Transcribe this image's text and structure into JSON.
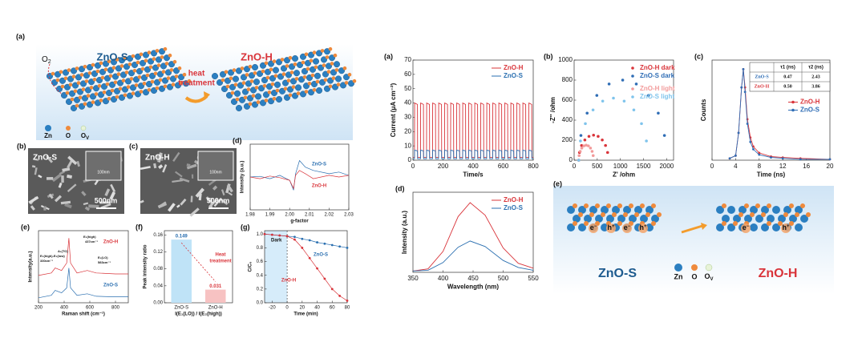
{
  "left_figure": {
    "diagram": {
      "label": "(a)",
      "oxygen": "O",
      "oxygen_sub": "2",
      "before": "ZnO-S",
      "process": [
        "heat",
        "treatment"
      ],
      "after": "ZnO-H",
      "legend": [
        "Zn",
        "O",
        "O"
      ],
      "vacancy_sub": "V"
    },
    "images": [
      {
        "label": "(b)",
        "name": "ZnO-S",
        "inset_scale": "100nm",
        "scale": "500nm"
      },
      {
        "label": "(c)",
        "name": "ZnO-H",
        "inset_scale": "100nm",
        "scale": "500nm"
      }
    ]
  },
  "chart_data": [
    {
      "type": "line",
      "label": "(d)",
      "xlabel": "g-factor",
      "ylabel": "Intensity (a.u.)",
      "x": [
        1.98,
        1.985,
        1.99,
        1.995,
        2.0,
        2.002,
        2.003,
        2.005,
        2.008,
        2.012,
        2.02,
        2.025,
        2.03
      ],
      "series": [
        {
          "name": "ZnO-S",
          "color": "#2a6fb0",
          "values": [
            0,
            0.02,
            -0.05,
            0.05,
            -0.1,
            -0.4,
            0.1,
            0.5,
            0.3,
            0.2,
            0.1,
            0.15,
            0.05
          ]
        },
        {
          "name": "ZnO-H",
          "color": "#d9343a",
          "values": [
            0,
            -0.05,
            0.03,
            -0.02,
            -0.1,
            -0.35,
            0.05,
            0.2,
            0.1,
            -0.05,
            0.05,
            0,
            0.05
          ]
        }
      ],
      "xlim": [
        1.98,
        2.03
      ],
      "xticks": [
        1.98,
        1.99,
        {
          "value": 2.0,
          "label": "2.00"
        },
        2.01,
        2.02,
        2.03
      ],
      "ylim": [
        -1,
        1
      ],
      "yticks": [],
      "legend": "inline"
    },
    {
      "type": "line",
      "label": "(e)",
      "xlabel": "Raman shift (cm⁻¹)",
      "ylabel": "Intensity(a.u.)",
      "x": [
        200,
        300,
        330,
        380,
        420,
        437,
        450,
        500,
        580,
        650,
        800,
        900
      ],
      "series": [
        {
          "name": "ZnO-H",
          "color": "#d9343a",
          "values": [
            0.55,
            0.6,
            0.7,
            0.65,
            0.8,
            1.3,
            0.8,
            0.6,
            0.65,
            0.6,
            0.58,
            0.58
          ]
        },
        {
          "name": "ZnO-S",
          "color": "#2a6fb0",
          "values": [
            0.1,
            0.15,
            0.25,
            0.2,
            0.3,
            0.7,
            0.3,
            0.15,
            0.18,
            0.13,
            0.12,
            0.12
          ]
        }
      ],
      "annotations": [
        "E₂(high)-E₂(low)",
        "330cm⁻¹",
        "A₁(TO)",
        "E₂(high)",
        "437cm⁻¹",
        "E₁(LO)",
        "583cm⁻¹"
      ],
      "xlim": [
        200,
        900
      ],
      "xticks": [
        200,
        400,
        600,
        800
      ],
      "ylim": [
        0,
        1.45
      ],
      "yticks": [],
      "legend": "inline"
    },
    {
      "type": "bar",
      "label": "(f)",
      "xlabel": "I(E₁(LO)) / I(E₂(high))",
      "ylabel": "Peak intensity ratio",
      "categories": [
        "ZnO-S",
        "ZnO-H"
      ],
      "values": [
        0.149,
        0.031
      ],
      "colors": [
        "#bfe3f7",
        "#f7c2c2"
      ],
      "label_colors": [
        "#2a6fb0",
        "#d9343a"
      ],
      "annotations": [
        "Heat",
        "treatment"
      ],
      "ylim": [
        0,
        0.17
      ],
      "yticks": [
        {
          "value": 0,
          "label": "0.00"
        },
        0.04,
        0.08,
        0.12,
        0.16
      ]
    },
    {
      "type": "line",
      "label": "(g)",
      "xlabel": "Time (min)",
      "ylabel": "C/C₀",
      "markers": true,
      "x": [
        -30,
        -20,
        -10,
        0,
        10,
        20,
        30,
        40,
        50,
        60,
        70,
        80
      ],
      "series": [
        {
          "name": "ZnO-S",
          "color": "#2a6fb0",
          "values": [
            1.0,
            0.99,
            0.98,
            0.97,
            0.96,
            0.93,
            0.91,
            0.88,
            0.86,
            0.84,
            0.82,
            0.8
          ]
        },
        {
          "name": "ZnO-H",
          "color": "#d9343a",
          "values": [
            1.0,
            0.99,
            0.98,
            0.97,
            0.92,
            0.8,
            0.65,
            0.5,
            0.35,
            0.2,
            0.1,
            0.03
          ]
        }
      ],
      "annotations": [
        "Dark"
      ],
      "dark_until": 0,
      "xlim": [
        -30,
        80
      ],
      "xticks": [
        -20,
        0,
        20,
        40,
        60,
        80
      ],
      "ylim": [
        0,
        1.05
      ],
      "yticks": [
        {
          "value": 0,
          "label": "0.0"
        },
        0.2,
        0.4,
        0.6,
        0.8,
        {
          "value": 1,
          "label": "1.0"
        }
      ],
      "legend": "inline"
    },
    {
      "type": "line",
      "label": "(a)",
      "xlabel": "Time/s",
      "ylabel": "Current (μA cm⁻²)",
      "x": [
        0,
        10,
        11,
        30,
        31,
        50,
        51,
        70,
        71,
        90,
        91,
        110,
        111,
        130,
        131,
        150,
        151,
        170,
        171,
        190,
        191,
        210,
        211,
        230,
        231,
        250,
        251,
        270,
        271,
        290,
        291,
        310,
        311,
        330,
        331,
        350,
        351,
        370,
        371,
        390,
        391,
        410,
        411,
        430,
        431,
        450,
        451,
        470,
        471,
        490,
        491,
        510,
        511,
        530,
        531,
        550,
        551,
        570,
        571,
        590,
        591,
        610,
        611,
        630,
        631,
        650,
        651,
        670,
        671,
        690,
        691,
        710,
        711,
        730,
        731,
        750,
        751,
        770,
        771,
        790,
        791,
        800
      ],
      "series": [
        {
          "name": "ZnO-H",
          "color": "#d9343a",
          "values": [
            2,
            2,
            40,
            39,
            2,
            2,
            40,
            39,
            2,
            2,
            40,
            39,
            2,
            2,
            40,
            39,
            2,
            2,
            40,
            39,
            2,
            2,
            40,
            39,
            2,
            2,
            40,
            39,
            2,
            2,
            40,
            39,
            2,
            2,
            40,
            39,
            2,
            2,
            40,
            39,
            2,
            2,
            40,
            39,
            2,
            2,
            40,
            39,
            2,
            2,
            40,
            39,
            2,
            2,
            40,
            39,
            2,
            2,
            40,
            39,
            2,
            2,
            40,
            39,
            2,
            2,
            40,
            39,
            2,
            2,
            40,
            39,
            2,
            2,
            40,
            39,
            2,
            2,
            40,
            39,
            2,
            2
          ]
        },
        {
          "name": "ZnO-S",
          "color": "#2a6fb0",
          "values": [
            1,
            1,
            7,
            6.5,
            1,
            1,
            7,
            6.5,
            1,
            1,
            7,
            6.5,
            1,
            1,
            7,
            6.5,
            1,
            1,
            7,
            6.5,
            1,
            1,
            7,
            6.5,
            1,
            1,
            7,
            6.5,
            1,
            1,
            7,
            6.5,
            1,
            1,
            7,
            6.5,
            1,
            1,
            7,
            6.5,
            1,
            1,
            7,
            6.5,
            1,
            1,
            7,
            6.5,
            1,
            1,
            7,
            6.5,
            1,
            1,
            7,
            6.5,
            1,
            1,
            7,
            6.5,
            1,
            1,
            7,
            6.5,
            1,
            1,
            7,
            6.5,
            1,
            1,
            7,
            6.5,
            1,
            1,
            7,
            6.5,
            1,
            1,
            7,
            6.5,
            1,
            1
          ]
        }
      ],
      "xlim": [
        0,
        800
      ],
      "xticks": [
        0,
        200,
        400,
        600,
        800
      ],
      "ylim": [
        0,
        70
      ],
      "yticks": [
        0,
        10,
        20,
        30,
        40,
        50,
        60,
        70
      ],
      "legend": "upper right"
    },
    {
      "type": "scatter",
      "label": "(b)",
      "xlabel": "Z' /ohm",
      "ylabel": "-Z'' /ohm",
      "series": [
        {
          "name": "ZnO-H dark",
          "color": "#d9343a",
          "x": [
            100,
            116,
            161,
            232,
            321,
            420,
            519,
            608,
            679,
            724
          ],
          "values": [
            0,
            77,
            147,
            202,
            238,
            250,
            238,
            202,
            147,
            77
          ]
        },
        {
          "name": "ZnO-S dark",
          "color": "#2f6db5",
          "x": [
            100,
            147,
            281,
            491,
            756,
            1050,
            1344,
            1609,
            1819,
            1953
          ],
          "values": [
            0,
            247,
            470,
            647,
            761,
            800,
            761,
            647,
            470,
            247
          ]
        },
        {
          "name": "ZnO-H light",
          "color": "#f29a9a",
          "x": [
            100,
            108,
            131,
            166,
            211,
            260,
            309,
            354,
            389,
            412
          ],
          "values": [
            0,
            46,
            88,
            121,
            143,
            150,
            143,
            121,
            88,
            46
          ]
        },
        {
          "name": "ZnO-S light",
          "color": "#7fc4ec",
          "x": [
            100,
            137,
            243,
            409,
            618,
            850,
            1082,
            1291,
            1457,
            1563
          ],
          "values": [
            0,
            192,
            365,
            502,
            590,
            620,
            590,
            502,
            365,
            192
          ]
        }
      ],
      "xlim": [
        0,
        2150
      ],
      "xticks": [
        0,
        500,
        1000,
        1500,
        2000
      ],
      "ylim": [
        0,
        1000
      ],
      "yticks": [
        0,
        200,
        400,
        600,
        800,
        1000
      ],
      "legend": "upper left"
    },
    {
      "type": "line",
      "label": "(c)",
      "xlabel": "Time (ns)",
      "ylabel": "Counts",
      "markers": true,
      "x": [
        3,
        4,
        4.5,
        5,
        5.3,
        5.6,
        6,
        6.5,
        7,
        8,
        10,
        12,
        15,
        20
      ],
      "series": [
        {
          "name": "ZnO-H",
          "color": "#d9343a",
          "values": [
            0.02,
            0.05,
            0.3,
            0.8,
            1.0,
            0.8,
            0.45,
            0.25,
            0.15,
            0.08,
            0.04,
            0.03,
            0.02,
            0.01
          ]
        },
        {
          "name": "ZnO-S",
          "color": "#2f6db5",
          "values": [
            0.02,
            0.05,
            0.3,
            0.8,
            1.0,
            0.75,
            0.4,
            0.2,
            0.12,
            0.06,
            0.03,
            0.02,
            0.01,
            0.01
          ]
        }
      ],
      "table": {
        "header": [
          "τ1 (ns)",
          "τ2 (ns)"
        ],
        "rows": [
          [
            "ZnO-S",
            "0.47",
            "2.43"
          ],
          [
            "ZnO-H",
            "0.50",
            "3.86"
          ]
        ]
      },
      "xlim": [
        0,
        20
      ],
      "xticks": [
        0,
        4,
        8,
        12,
        16,
        20
      ],
      "ylim": [
        0,
        1.1
      ],
      "yticks": [],
      "legend": "center right"
    },
    {
      "type": "line",
      "label": "(d)",
      "xlabel": "Wavelength (nm)",
      "ylabel": "Intensity (a.u.)",
      "x": [
        350,
        375,
        400,
        425,
        445,
        470,
        500,
        525,
        550
      ],
      "series": [
        {
          "name": "ZnO-H",
          "color": "#d9343a",
          "values": [
            0.02,
            0.05,
            0.3,
            0.8,
            1.0,
            0.82,
            0.35,
            0.13,
            0.06
          ]
        },
        {
          "name": "ZnO-S",
          "color": "#2a6fb0",
          "values": [
            0.02,
            0.03,
            0.14,
            0.36,
            0.45,
            0.37,
            0.17,
            0.07,
            0.03
          ]
        }
      ],
      "xlim": [
        350,
        550
      ],
      "xticks": [
        350,
        400,
        450,
        500,
        550
      ],
      "ylim": [
        0,
        1.15
      ],
      "yticks": [],
      "legend": "upper right"
    }
  ],
  "right_diagram": {
    "label": "(e)",
    "before": "ZnO-S",
    "after": "ZnO-H",
    "legend": [
      "Zn",
      "O",
      "O"
    ],
    "vacancy_sub": "V",
    "electron": "e",
    "electron_sup": "−",
    "hole": "h",
    "hole_sup": "+"
  }
}
